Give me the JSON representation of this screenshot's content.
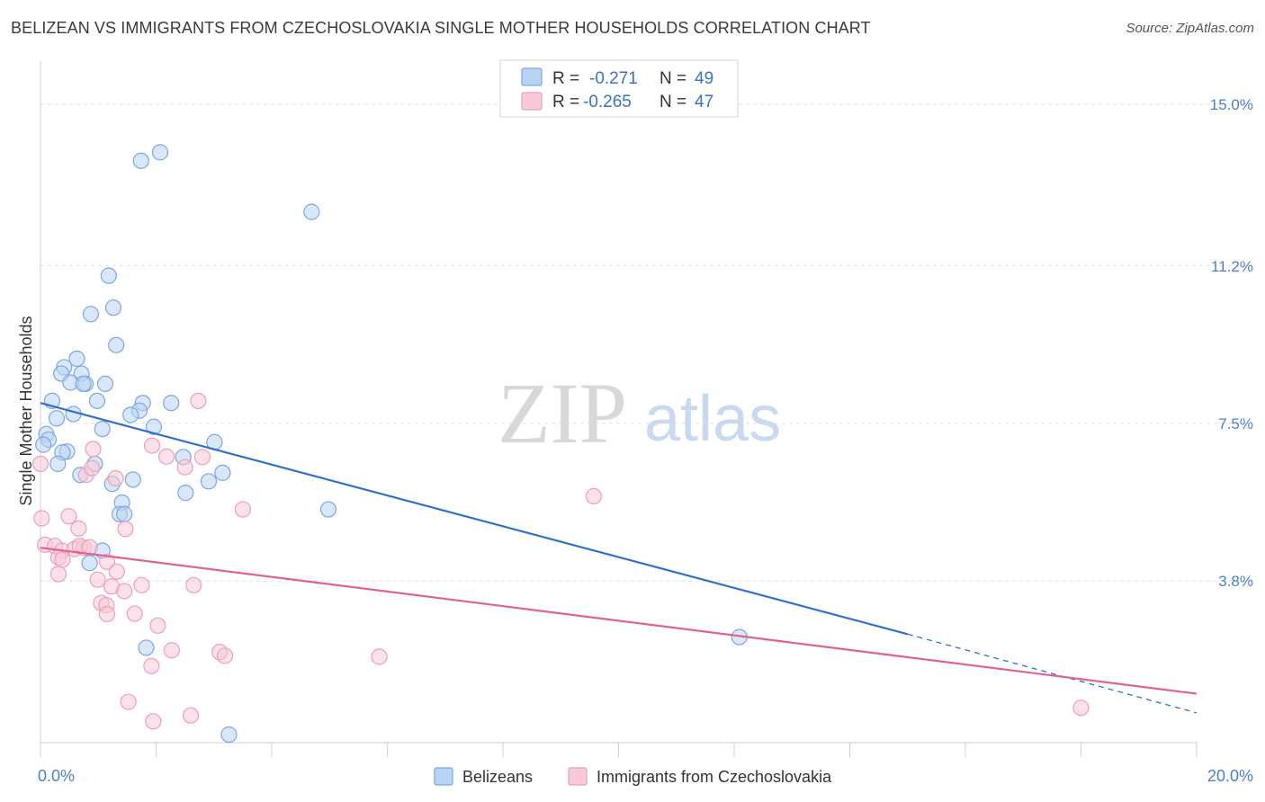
{
  "header": {
    "title": "BELIZEAN VS IMMIGRANTS FROM CZECHOSLOVAKIA SINGLE MOTHER HOUSEHOLDS CORRELATION CHART",
    "source": "Source: ZipAtlas.com"
  },
  "watermark": {
    "zip": "ZIP",
    "atlas": "atlas"
  },
  "legend": {
    "r_label": "R =",
    "n_label": "N =",
    "entries": [
      {
        "r": "-0.271",
        "n": "49",
        "color": "#a9c8f0"
      },
      {
        "r": "-0.265",
        "n": "47",
        "color": "#f5b8cb"
      }
    ]
  },
  "chart_data": {
    "type": "scatter",
    "title": "BELIZEAN VS IMMIGRANTS FROM CZECHOSLOVAKIA SINGLE MOTHER HOUSEHOLDS CORRELATION CHART",
    "xlabel": "",
    "ylabel": "Single Mother Households",
    "xlim": [
      0,
      20
    ],
    "ylim": [
      0,
      15.8
    ],
    "x_tick_labels": [
      "0.0%",
      "20.0%"
    ],
    "y_ticks": [
      3.8,
      7.5,
      11.2,
      15.0
    ],
    "y_tick_labels": [
      "3.8%",
      "7.5%",
      "11.2%",
      "15.0%"
    ],
    "x_minor_ticks": [
      0,
      2,
      4,
      6,
      8,
      10,
      12,
      14,
      16,
      18,
      20
    ],
    "series": [
      {
        "name": "Belizeans",
        "color": "#7aa8e6",
        "fill": "#b9d3f3",
        "line_color": "#2f6fce",
        "trend": {
          "x0": 0,
          "y0": 7.98,
          "x1": 15.0,
          "y1": 2.55,
          "dash_x1": 20.0,
          "dash_y1": 0.7
        },
        "points": [
          {
            "x": 2.07,
            "y": 13.87
          },
          {
            "x": 1.74,
            "y": 13.67
          },
          {
            "x": 4.69,
            "y": 12.47
          },
          {
            "x": 1.18,
            "y": 10.97
          },
          {
            "x": 1.26,
            "y": 10.22
          },
          {
            "x": 0.87,
            "y": 10.07
          },
          {
            "x": 1.31,
            "y": 9.34
          },
          {
            "x": 0.63,
            "y": 9.02
          },
          {
            "x": 0.41,
            "y": 8.82
          },
          {
            "x": 0.36,
            "y": 8.67
          },
          {
            "x": 0.71,
            "y": 8.67
          },
          {
            "x": 0.52,
            "y": 8.46
          },
          {
            "x": 0.78,
            "y": 8.43
          },
          {
            "x": 0.74,
            "y": 8.43
          },
          {
            "x": 1.12,
            "y": 8.43
          },
          {
            "x": 0.2,
            "y": 8.03
          },
          {
            "x": 0.98,
            "y": 8.03
          },
          {
            "x": 1.77,
            "y": 7.98
          },
          {
            "x": 2.26,
            "y": 7.98
          },
          {
            "x": 1.71,
            "y": 7.8
          },
          {
            "x": 1.56,
            "y": 7.7
          },
          {
            "x": 0.57,
            "y": 7.72
          },
          {
            "x": 0.28,
            "y": 7.62
          },
          {
            "x": 1.07,
            "y": 7.37
          },
          {
            "x": 1.96,
            "y": 7.42
          },
          {
            "x": 0.1,
            "y": 7.25
          },
          {
            "x": 0.14,
            "y": 7.12
          },
          {
            "x": 3.01,
            "y": 7.06
          },
          {
            "x": 0.05,
            "y": 7.0
          },
          {
            "x": 0.46,
            "y": 6.84
          },
          {
            "x": 0.38,
            "y": 6.82
          },
          {
            "x": 0.3,
            "y": 6.55
          },
          {
            "x": 0.94,
            "y": 6.55
          },
          {
            "x": 2.47,
            "y": 6.71
          },
          {
            "x": 3.15,
            "y": 6.34
          },
          {
            "x": 0.69,
            "y": 6.29
          },
          {
            "x": 1.6,
            "y": 6.18
          },
          {
            "x": 2.91,
            "y": 6.14
          },
          {
            "x": 1.24,
            "y": 6.08
          },
          {
            "x": 2.51,
            "y": 5.87
          },
          {
            "x": 1.41,
            "y": 5.64
          },
          {
            "x": 4.98,
            "y": 5.48
          },
          {
            "x": 1.37,
            "y": 5.37
          },
          {
            "x": 1.45,
            "y": 5.37
          },
          {
            "x": 1.07,
            "y": 4.51
          },
          {
            "x": 0.85,
            "y": 4.22
          },
          {
            "x": 12.09,
            "y": 2.48
          },
          {
            "x": 1.83,
            "y": 2.23
          },
          {
            "x": 3.26,
            "y": 0.19
          }
        ]
      },
      {
        "name": "Immigrants from Czechoslovakia",
        "color": "#ee9fb7",
        "fill": "#f8c9d6",
        "line_color": "#e0628d",
        "trend": {
          "x0": 0,
          "y0": 4.58,
          "x1": 20.0,
          "y1": 1.15
        },
        "points": [
          {
            "x": 0.0,
            "y": 6.55
          },
          {
            "x": 0.02,
            "y": 5.27
          },
          {
            "x": 0.08,
            "y": 4.65
          },
          {
            "x": 0.25,
            "y": 4.62
          },
          {
            "x": 0.37,
            "y": 4.51
          },
          {
            "x": 0.31,
            "y": 4.35
          },
          {
            "x": 0.38,
            "y": 4.3
          },
          {
            "x": 0.31,
            "y": 3.96
          },
          {
            "x": 0.49,
            "y": 5.32
          },
          {
            "x": 0.66,
            "y": 5.03
          },
          {
            "x": 0.59,
            "y": 4.55
          },
          {
            "x": 0.75,
            "y": 4.58
          },
          {
            "x": 0.68,
            "y": 4.62
          },
          {
            "x": 0.85,
            "y": 4.59
          },
          {
            "x": 0.79,
            "y": 6.29
          },
          {
            "x": 0.89,
            "y": 6.45
          },
          {
            "x": 0.91,
            "y": 6.9
          },
          {
            "x": 1.3,
            "y": 6.21
          },
          {
            "x": 1.15,
            "y": 4.25
          },
          {
            "x": 1.32,
            "y": 4.02
          },
          {
            "x": 0.99,
            "y": 3.83
          },
          {
            "x": 1.23,
            "y": 3.67
          },
          {
            "x": 1.45,
            "y": 3.56
          },
          {
            "x": 1.47,
            "y": 5.02
          },
          {
            "x": 1.05,
            "y": 3.28
          },
          {
            "x": 1.14,
            "y": 3.23
          },
          {
            "x": 1.15,
            "y": 3.02
          },
          {
            "x": 1.63,
            "y": 3.03
          },
          {
            "x": 1.75,
            "y": 3.7
          },
          {
            "x": 1.93,
            "y": 6.98
          },
          {
            "x": 2.18,
            "y": 6.72
          },
          {
            "x": 2.5,
            "y": 6.47
          },
          {
            "x": 2.8,
            "y": 6.71
          },
          {
            "x": 2.73,
            "y": 8.03
          },
          {
            "x": 3.5,
            "y": 5.48
          },
          {
            "x": 2.65,
            "y": 3.7
          },
          {
            "x": 2.03,
            "y": 2.75
          },
          {
            "x": 2.27,
            "y": 2.17
          },
          {
            "x": 1.92,
            "y": 1.8
          },
          {
            "x": 3.1,
            "y": 2.13
          },
          {
            "x": 3.19,
            "y": 2.04
          },
          {
            "x": 5.86,
            "y": 2.02
          },
          {
            "x": 9.57,
            "y": 5.79
          },
          {
            "x": 1.52,
            "y": 0.96
          },
          {
            "x": 1.95,
            "y": 0.5
          },
          {
            "x": 2.6,
            "y": 0.64
          },
          {
            "x": 18.0,
            "y": 0.82
          }
        ]
      }
    ]
  }
}
